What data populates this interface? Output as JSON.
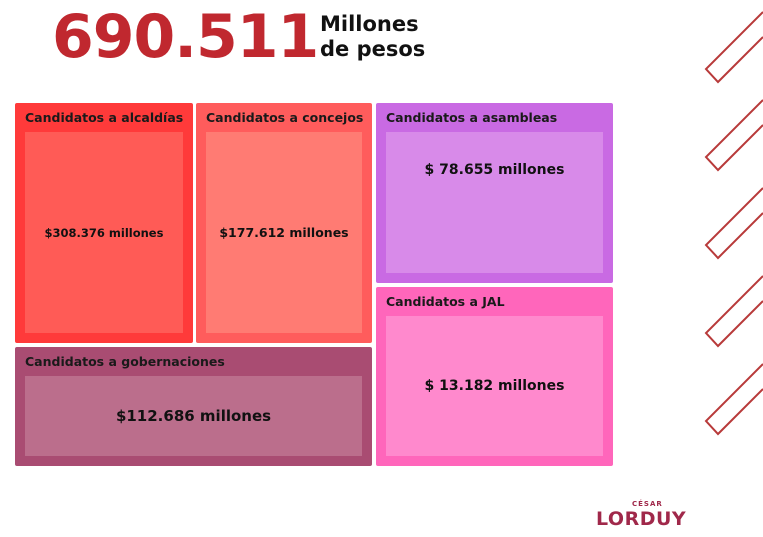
{
  "header": {
    "total": "690.511",
    "unit_line1": "Millones",
    "unit_line2": "de pesos"
  },
  "boxes": [
    {
      "title": "Candidatos a alcaldías",
      "amount": "$308.376 millones"
    },
    {
      "title": "Candidatos a concejos",
      "amount": "$177.612 millones"
    },
    {
      "title": "Candidatos a asambleas",
      "amount": "$ 78.655 millones"
    },
    {
      "title": "Candidatos a JAL",
      "amount": "$ 13.182 millones"
    },
    {
      "title": "Candidatos a gobernaciones",
      "amount": "$112.686 millones"
    }
  ],
  "brand": {
    "small": "CÉSAR",
    "name": "LORDUY"
  }
}
